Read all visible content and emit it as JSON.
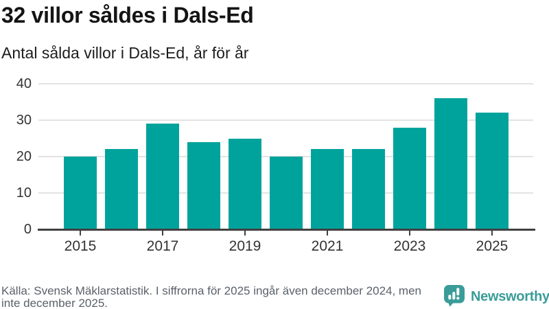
{
  "header": {
    "title": "32 villor såldes i Dals-Ed",
    "subtitle": "Antal sålda villor i Dals-Ed, år för år"
  },
  "chart_data": {
    "type": "bar",
    "title": "32 villor såldes i Dals-Ed",
    "subtitle": "Antal sålda villor i Dals-Ed, år för år",
    "categories": [
      "2015",
      "2016",
      "2017",
      "2018",
      "2019",
      "2020",
      "2021",
      "2022",
      "2023",
      "2024",
      "2025"
    ],
    "values": [
      20,
      22,
      29,
      24,
      25,
      20,
      22,
      22,
      28,
      36,
      32
    ],
    "xlabel": "",
    "ylabel": "",
    "ylim": [
      0,
      40
    ],
    "yticks": [
      0,
      10,
      20,
      30,
      40
    ],
    "xtick_labels": [
      "2015",
      "2017",
      "2019",
      "2021",
      "2023",
      "2025"
    ],
    "grid": true,
    "legend_position": "none",
    "bar_color": "#00a39c"
  },
  "footer": {
    "source": "Källa: Svensk Mäklarstatistik. I siffrorna för 2025 ingår även december 2024, men inte december 2025.",
    "brand": "Newsworthy"
  },
  "colors": {
    "bar": "#00a39c",
    "logo_teal": "#3a9c98",
    "axis": "#404040",
    "gridline": "#e3e3e3",
    "tick_label": "#333333",
    "source_text": "#5a6169"
  },
  "icons": {
    "logo_icon": "newsworthy-speech-bubble-bar-chart-icon"
  }
}
